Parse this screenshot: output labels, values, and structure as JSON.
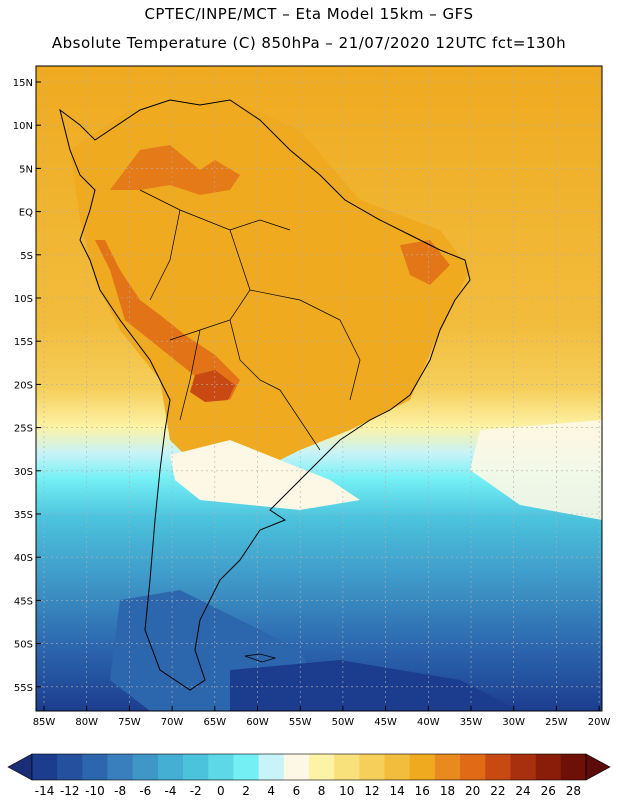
{
  "header": {
    "line1": "CPTEC/INPE/MCT –  Eta Model 15km – GFS",
    "line2": "Absolute Temperature (C) 850hPa – 21/07/2020 12UTC fct=130h"
  },
  "axes": {
    "lat_labels": [
      "15N",
      "10N",
      "5N",
      "EQ",
      "5S",
      "10S",
      "15S",
      "20S",
      "25S",
      "30S",
      "35S",
      "40S",
      "45S",
      "50S",
      "55S"
    ],
    "lon_labels": [
      "85W",
      "80W",
      "75W",
      "70W",
      "65W",
      "60W",
      "55W",
      "50W",
      "45W",
      "40W",
      "35W",
      "30W",
      "25W",
      "20W"
    ]
  },
  "colorbar": {
    "labels": [
      "-14",
      "-12",
      "-10",
      "-8",
      "-6",
      "-4",
      "-2",
      "0",
      "2",
      "4",
      "6",
      "8",
      "10",
      "12",
      "14",
      "16",
      "18",
      "20",
      "22",
      "24",
      "26",
      "28"
    ],
    "colors": [
      "#1c3d8e",
      "#24509e",
      "#2c67ae",
      "#3a7fbd",
      "#3e97c7",
      "#45aed3",
      "#4cc3dd",
      "#5cd8e6",
      "#74f0f5",
      "#c8f3f8",
      "#fdf8e6",
      "#fdf3a6",
      "#f8e07a",
      "#f5cf5a",
      "#f2bc3c",
      "#efaa20",
      "#e88a1e",
      "#e06a16",
      "#c84a12",
      "#a8300e",
      "#8a1c0a",
      "#6e1006"
    ],
    "left_arrow_color": "#1a2e78",
    "right_arrow_color": "#5c0a0a"
  },
  "map_colors": {
    "ocean_south_deep": "#1c3d8e",
    "ocean_south": "#2c67ae",
    "ocean_cool": "#45aed3",
    "ocean_cyan": "#5cd8e6",
    "ocean_pale": "#c8f3f8",
    "cream": "#fdf8e6",
    "warm": "#efaa20",
    "warm_light": "#f2bc3c",
    "hot": "#e06a16",
    "hottest": "#a8300e",
    "grid": "#b0b0b0",
    "coast": "#000000"
  }
}
